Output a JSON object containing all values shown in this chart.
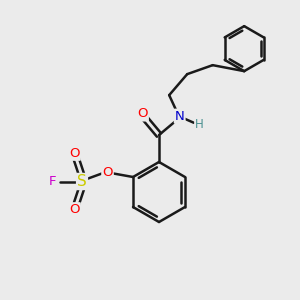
{
  "bg_color": "#ebebeb",
  "bond_color": "#1a1a1a",
  "bond_width": 1.8,
  "atom_colors": {
    "O": "#ff0000",
    "N": "#0000cc",
    "S": "#cccc00",
    "F": "#cc00cc",
    "H": "#4a9090"
  },
  "font_size": 9.5,
  "fig_size": [
    3.0,
    3.0
  ],
  "dpi": 100
}
